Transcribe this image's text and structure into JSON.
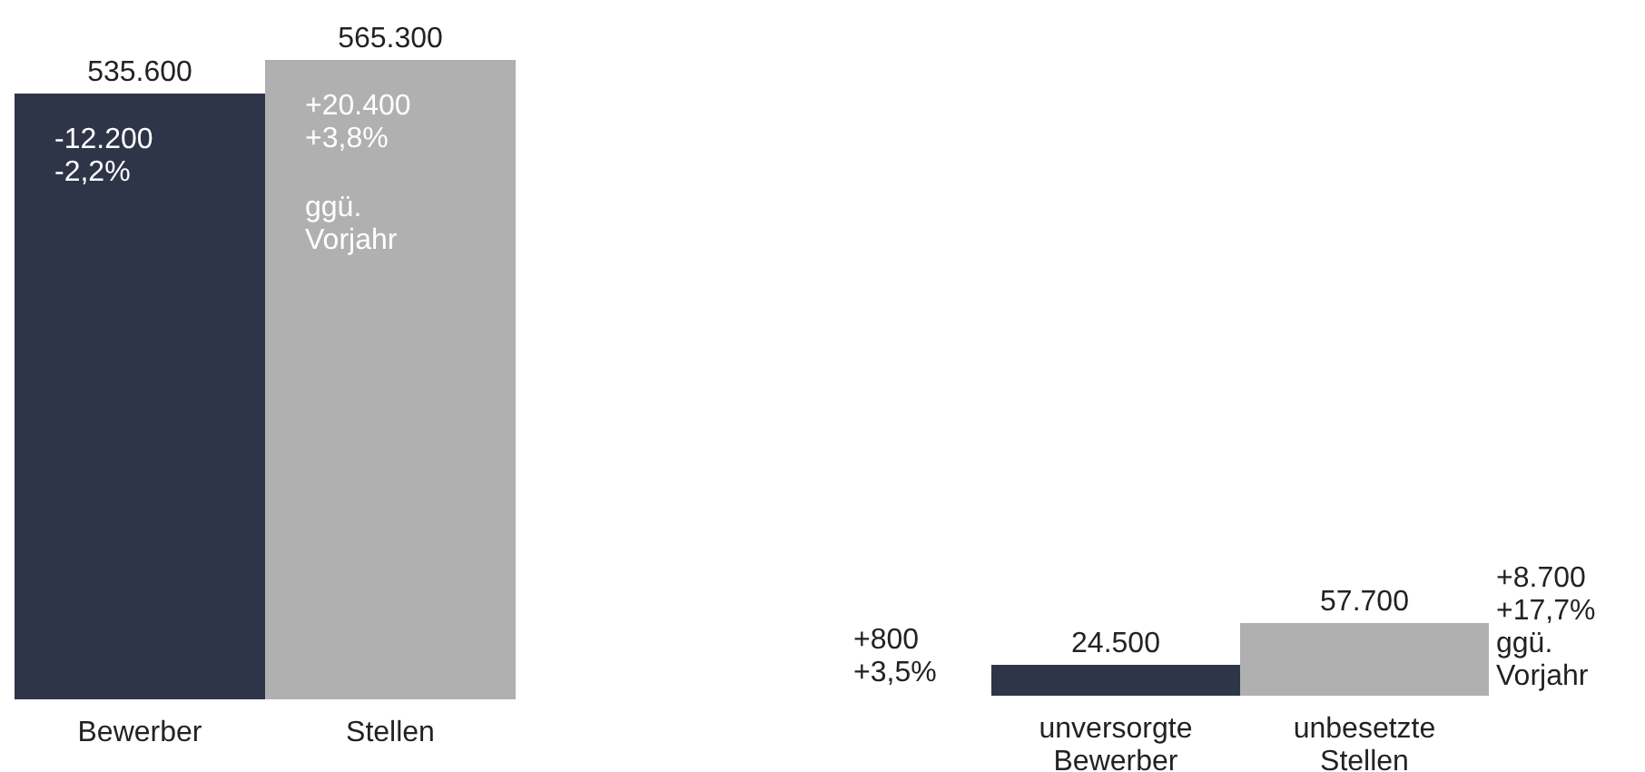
{
  "chart_data": [
    {
      "type": "bar",
      "categories": [
        "Bewerber",
        "Stellen"
      ],
      "values": [
        535600,
        565300
      ],
      "colors": [
        "#2e3549",
        "#b0b0b0"
      ],
      "data_labels": true,
      "value_labels": [
        "535.600",
        "565.300"
      ],
      "annotations": [
        "-12.200\n-2,2%",
        "+20.400\n+3,8%",
        "ggü.\nVorjahr"
      ]
    },
    {
      "type": "bar",
      "categories": [
        "unversorgte Bewerber",
        "unbesetzte Stellen"
      ],
      "values": [
        24500,
        57700
      ],
      "colors": [
        "#2e3549",
        "#b0b0b0"
      ],
      "data_labels": true,
      "value_labels": [
        "24.500",
        "57.700"
      ],
      "annotations": [
        "+800\n+3,5%",
        "+8.700\n+17,7%\nggü.\nVorjahr"
      ]
    }
  ]
}
